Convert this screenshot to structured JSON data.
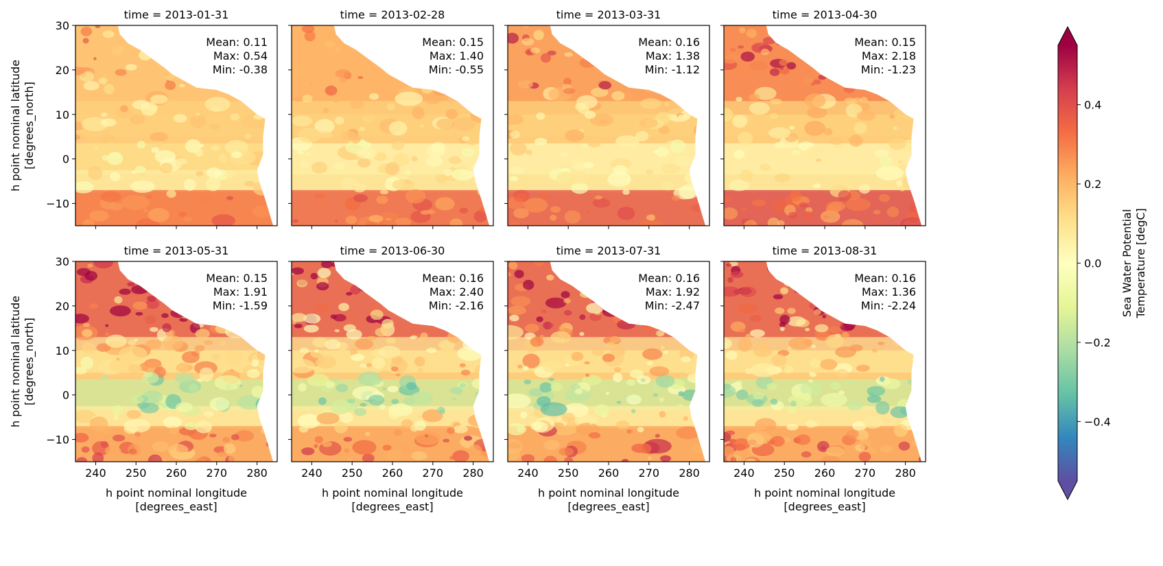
{
  "chart_data": {
    "type": "heatmap",
    "variable_label": [
      "Sea Water Potential",
      "Temperature [degC]"
    ],
    "colormap": "Spectral_r",
    "colorbar": {
      "vmin": -0.55,
      "vmax": 0.55,
      "ticks": [
        -0.4,
        -0.2,
        0.0,
        0.2,
        0.4
      ],
      "tick_labels": [
        "−0.4",
        "−0.2",
        "0.0",
        "0.2",
        "0.4"
      ],
      "extend": "both",
      "colors": [
        "#5e4fa2",
        "#3288bd",
        "#66c2a5",
        "#abdda4",
        "#e6f598",
        "#ffffbf",
        "#fee08b",
        "#fdae61",
        "#f46d43",
        "#d53e4f",
        "#9e0142"
      ]
    },
    "xlabel": [
      "h point nominal longitude",
      "[degrees_east]"
    ],
    "ylabel": [
      "h point nominal latitude",
      "[degrees_north]"
    ],
    "xlim": [
      235,
      285
    ],
    "ylim": [
      -15,
      30
    ],
    "xticks": [
      240,
      250,
      260,
      270,
      280
    ],
    "xtick_labels": [
      "240",
      "250",
      "260",
      "270",
      "280"
    ],
    "yticks": [
      -10,
      0,
      10,
      20,
      30
    ],
    "ytick_labels": [
      "−10",
      "0",
      "10",
      "20",
      "30"
    ],
    "grid": false,
    "panels": [
      {
        "title": "time = 2013-01-31",
        "mean": "Mean: 0.11",
        "max": "Max: 0.54",
        "min": "Min: -0.38"
      },
      {
        "title": "time = 2013-02-28",
        "mean": "Mean: 0.15",
        "max": "Max: 1.40",
        "min": "Min: -0.55"
      },
      {
        "title": "time = 2013-03-31",
        "mean": "Mean: 0.16",
        "max": "Max: 1.38",
        "min": "Min: -1.12"
      },
      {
        "title": "time = 2013-04-30",
        "mean": "Mean: 0.15",
        "max": "Max: 2.18",
        "min": "Min: -1.23"
      },
      {
        "title": "time = 2013-05-31",
        "mean": "Mean: 0.15",
        "max": "Max: 1.91",
        "min": "Min: -1.59"
      },
      {
        "title": "time = 2013-06-30",
        "mean": "Mean: 0.16",
        "max": "Max: 2.40",
        "min": "Min: -2.16"
      },
      {
        "title": "time = 2013-07-31",
        "mean": "Mean: 0.16",
        "max": "Max: 1.92",
        "min": "Min: -2.47"
      },
      {
        "title": "time = 2013-08-31",
        "mean": "Mean: 0.16",
        "max": "Max: 1.36",
        "min": "Min: -2.24"
      }
    ]
  }
}
